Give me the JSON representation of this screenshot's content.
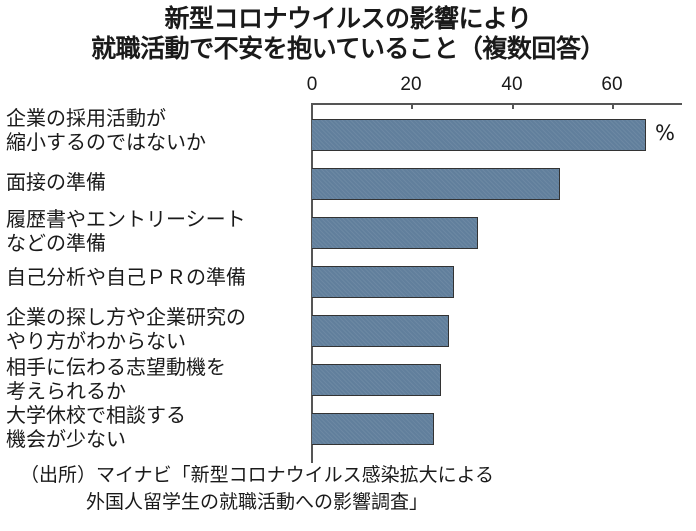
{
  "title": {
    "line1": "新型コロナウイルスの影響により",
    "line2": "就職活動で不安を抱いていること（複数回答）"
  },
  "axis": {
    "ticks": [
      "0",
      "20",
      "40",
      "60"
    ],
    "unit": "%"
  },
  "categories": [
    "企業の採用活動が\n縮小するのではないか",
    "面接の準備",
    "履歴書やエントリーシート\nなどの準備",
    "自己分析や自己ＰＲの準備",
    "企業の探し方や企業研究の\nやり方がわからない",
    "相手に伝わる志望動機を\n考えられるか",
    "大学休校で相談する\n機会が少ない"
  ],
  "source": {
    "line1": "（出所）マイナビ「新型コロナウイルス感染拡大による",
    "line2": "外国人留学生の就職活動への影響調査」"
  },
  "colors": {
    "bar": "#617f9c",
    "axis": "#555555"
  },
  "chart_data": {
    "type": "bar",
    "orientation": "horizontal",
    "title": "新型コロナウイルスの影響により就職活動で不安を抱いていること（複数回答）",
    "categories": [
      "企業の採用活動が縮小するのではないか",
      "面接の準備",
      "履歴書やエントリーシートなどの準備",
      "自己分析や自己ＰＲの準備",
      "企業の探し方や企業研究のやり方がわからない",
      "相手に伝わる志望動機を考えられるか",
      "大学休校で相談する機会が少ない"
    ],
    "values": [
      66.7,
      49.6,
      33.1,
      28.3,
      27.3,
      25.7,
      24.3
    ],
    "xlabel": "%",
    "ylabel": "",
    "xlim": [
      0,
      70
    ],
    "xticks": [
      0,
      20,
      40,
      60
    ],
    "grid": false,
    "legend": null,
    "annotations": [
      "（出所）マイナビ「新型コロナウイルス感染拡大による外国人留学生の就職活動への影響調査」"
    ]
  }
}
